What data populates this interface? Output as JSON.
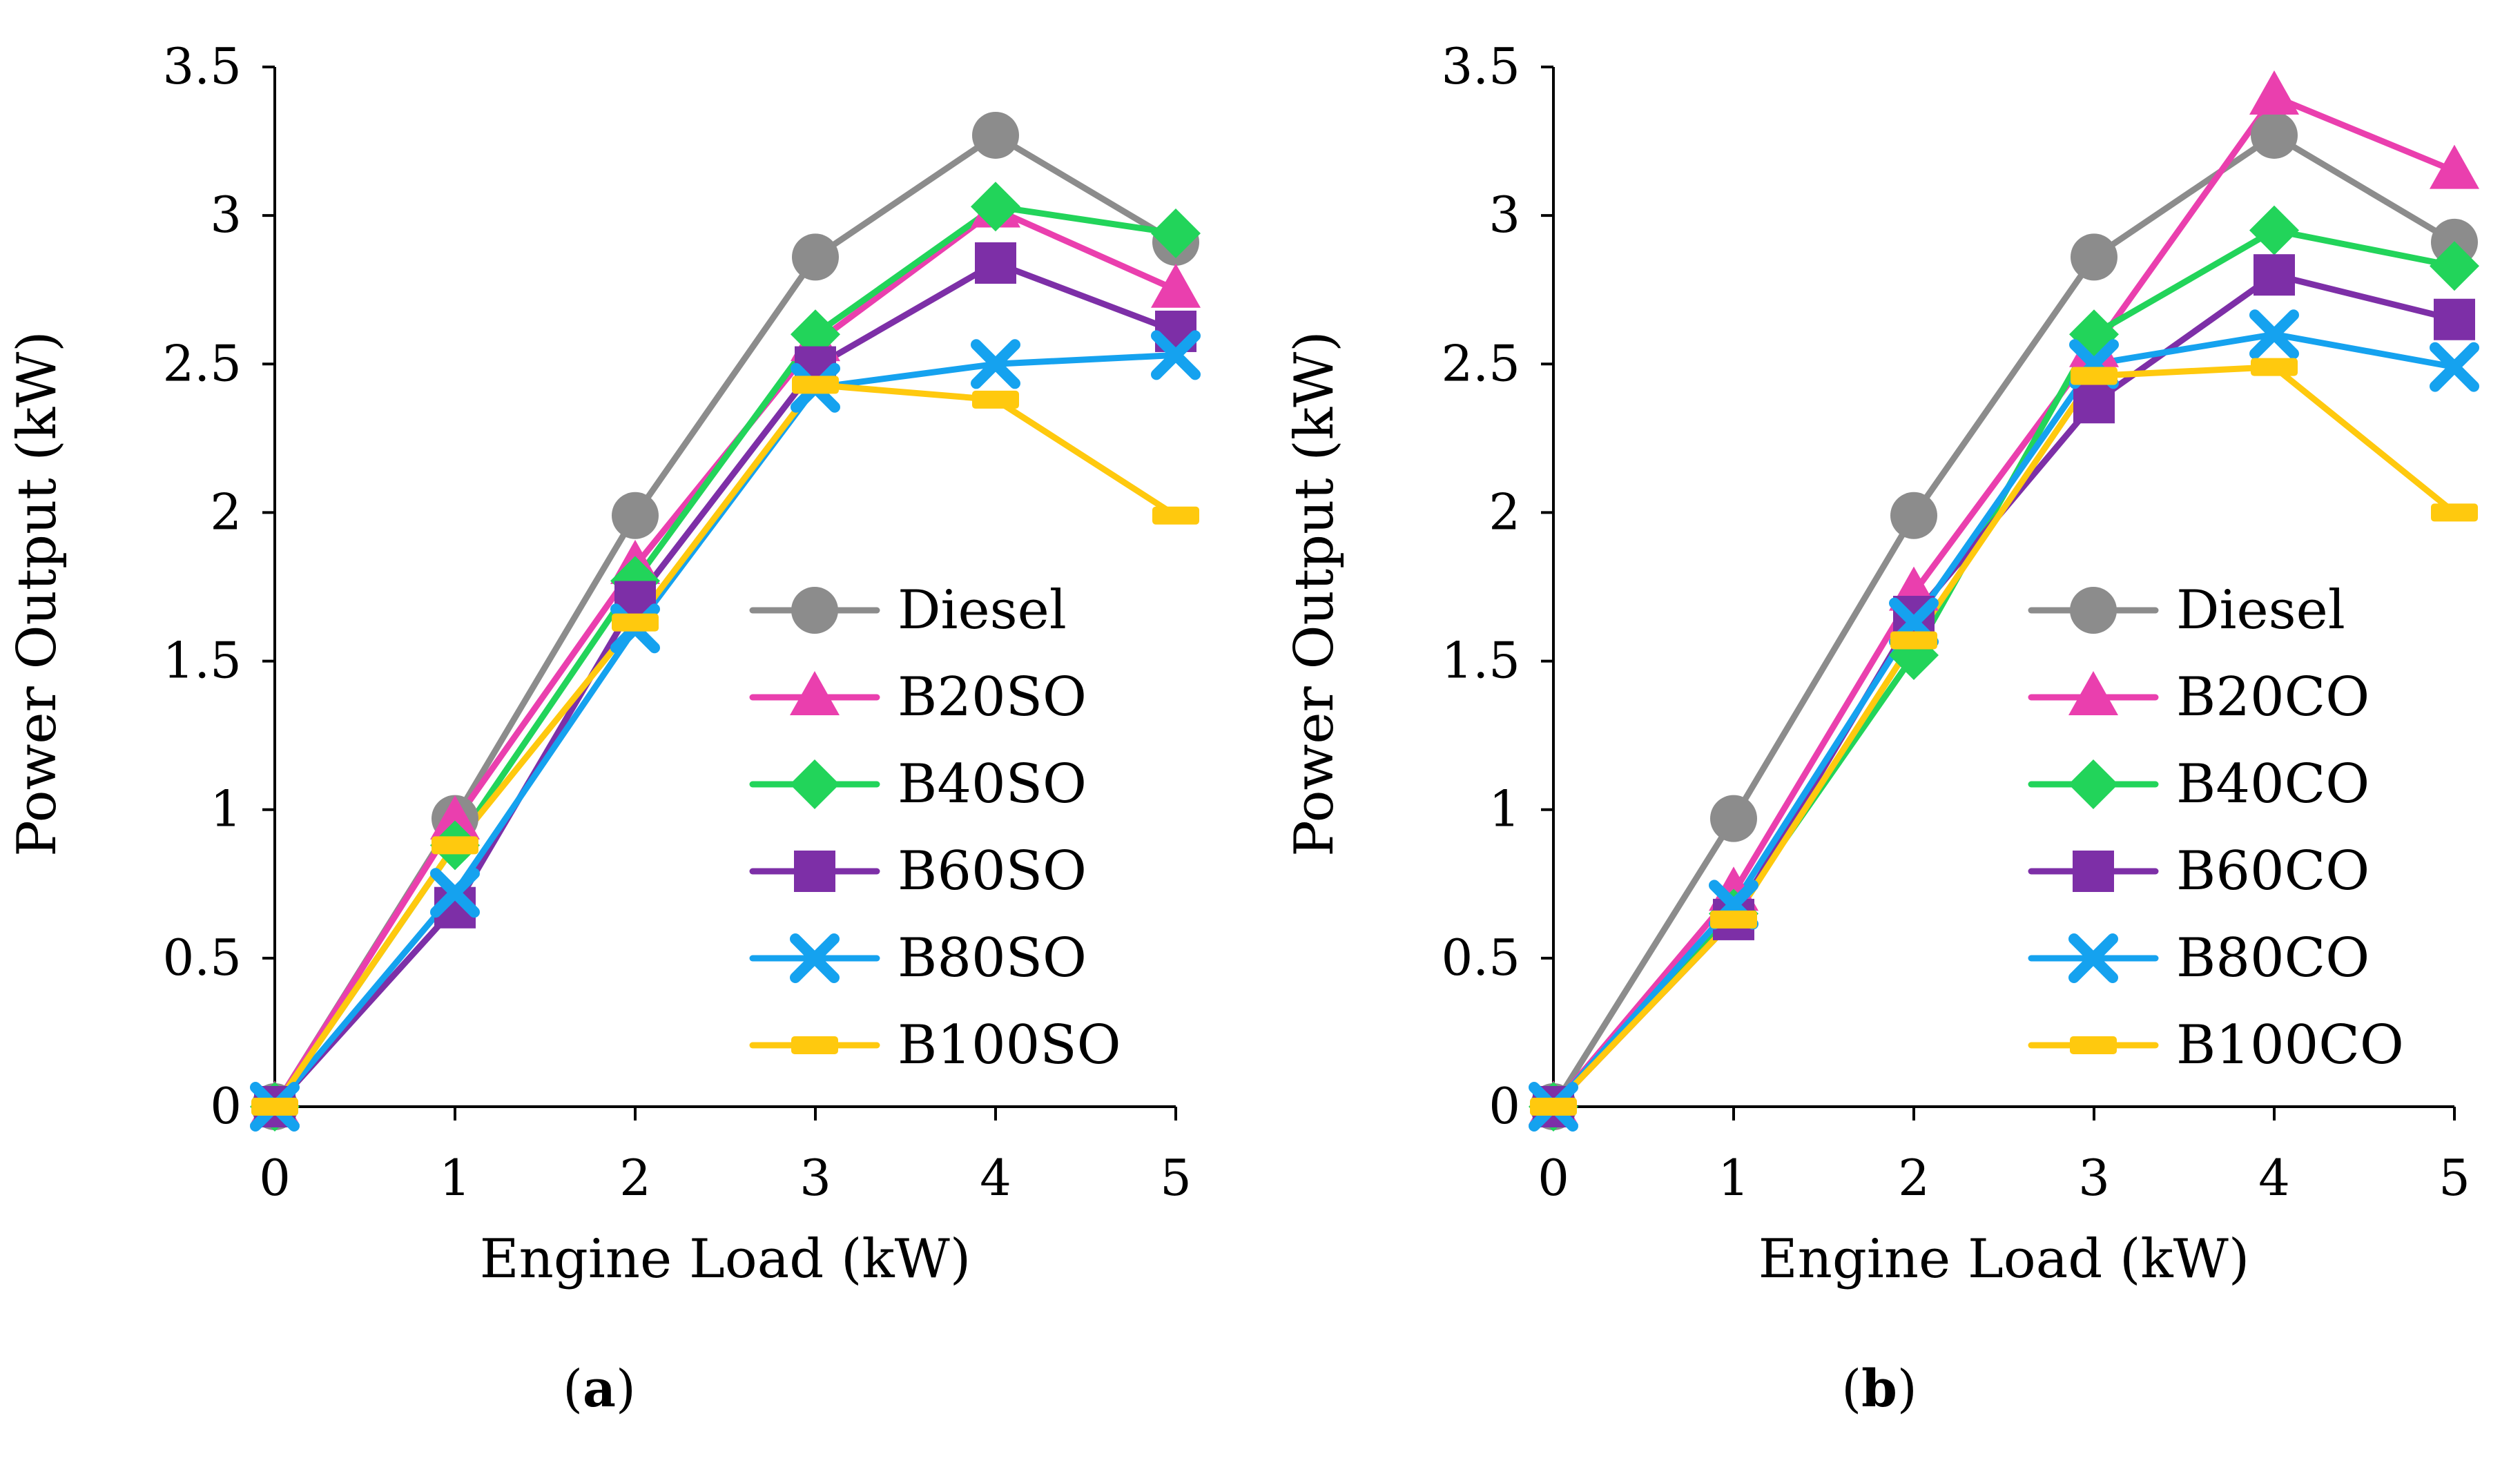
{
  "chart_data": [
    {
      "type": "line",
      "panel": "a",
      "caption_letter": "a",
      "xlabel": "Engine Load (kW)",
      "ylabel": "Power Output (kW)",
      "x": [
        0,
        1,
        2,
        3,
        4,
        5
      ],
      "xlim": [
        0,
        5
      ],
      "ylim": [
        0,
        3.5
      ],
      "x_ticks": [
        "0",
        "1",
        "2",
        "3",
        "4",
        "5"
      ],
      "y_ticks": [
        "0",
        "0.5",
        "1",
        "1.5",
        "2",
        "2.5",
        "3",
        "3.5"
      ],
      "legend_position": "lower-right",
      "series": [
        {
          "name": "Diesel",
          "color": "#8c8c8c",
          "marker": "circle",
          "values": [
            0,
            0.97,
            1.99,
            2.86,
            3.27,
            2.91
          ]
        },
        {
          "name": "B20SO",
          "color": "#ea3fae",
          "marker": "triangle",
          "values": [
            0,
            0.96,
            1.82,
            2.57,
            3.02,
            2.75
          ]
        },
        {
          "name": "B40SO",
          "color": "#22d45a",
          "marker": "diamond",
          "values": [
            0,
            0.88,
            1.77,
            2.6,
            3.03,
            2.94
          ]
        },
        {
          "name": "B60SO",
          "color": "#7d2fa7",
          "marker": "square",
          "values": [
            0,
            0.67,
            1.7,
            2.49,
            2.84,
            2.61
          ]
        },
        {
          "name": "B80SO",
          "color": "#15a2ef",
          "marker": "x",
          "values": [
            0,
            0.72,
            1.61,
            2.42,
            2.5,
            2.53
          ]
        },
        {
          "name": "B100SO",
          "color": "#ffc90e",
          "marker": "dash",
          "values": [
            0,
            0.88,
            1.63,
            2.43,
            2.38,
            1.99
          ]
        }
      ]
    },
    {
      "type": "line",
      "panel": "b",
      "caption_letter": "b",
      "xlabel": "Engine Load (kW)",
      "ylabel": "Power Output (kW)",
      "x": [
        0,
        1,
        2,
        3,
        4,
        5
      ],
      "xlim": [
        0,
        5
      ],
      "ylim": [
        0,
        3.5
      ],
      "x_ticks": [
        "0",
        "1",
        "2",
        "3",
        "4",
        "5"
      ],
      "y_ticks": [
        "0",
        "0.5",
        "1",
        "1.5",
        "2",
        "2.5",
        "3",
        "3.5"
      ],
      "legend_position": "lower-right",
      "series": [
        {
          "name": "Diesel",
          "color": "#8c8c8c",
          "marker": "circle",
          "values": [
            0,
            0.97,
            1.99,
            2.86,
            3.27,
            2.91
          ]
        },
        {
          "name": "B20CO",
          "color": "#ea3fae",
          "marker": "triangle",
          "values": [
            0,
            0.72,
            1.73,
            2.55,
            3.4,
            3.15
          ]
        },
        {
          "name": "B40CO",
          "color": "#22d45a",
          "marker": "diamond",
          "values": [
            0,
            0.65,
            1.52,
            2.6,
            2.95,
            2.83
          ]
        },
        {
          "name": "B60CO",
          "color": "#7d2fa7",
          "marker": "square",
          "values": [
            0,
            0.63,
            1.65,
            2.37,
            2.8,
            2.65
          ]
        },
        {
          "name": "B80CO",
          "color": "#15a2ef",
          "marker": "x",
          "values": [
            0,
            0.68,
            1.63,
            2.5,
            2.6,
            2.49
          ]
        },
        {
          "name": "B100CO",
          "color": "#ffc90e",
          "marker": "dash",
          "values": [
            0,
            0.63,
            1.57,
            2.46,
            2.49,
            2.0
          ]
        }
      ]
    }
  ]
}
